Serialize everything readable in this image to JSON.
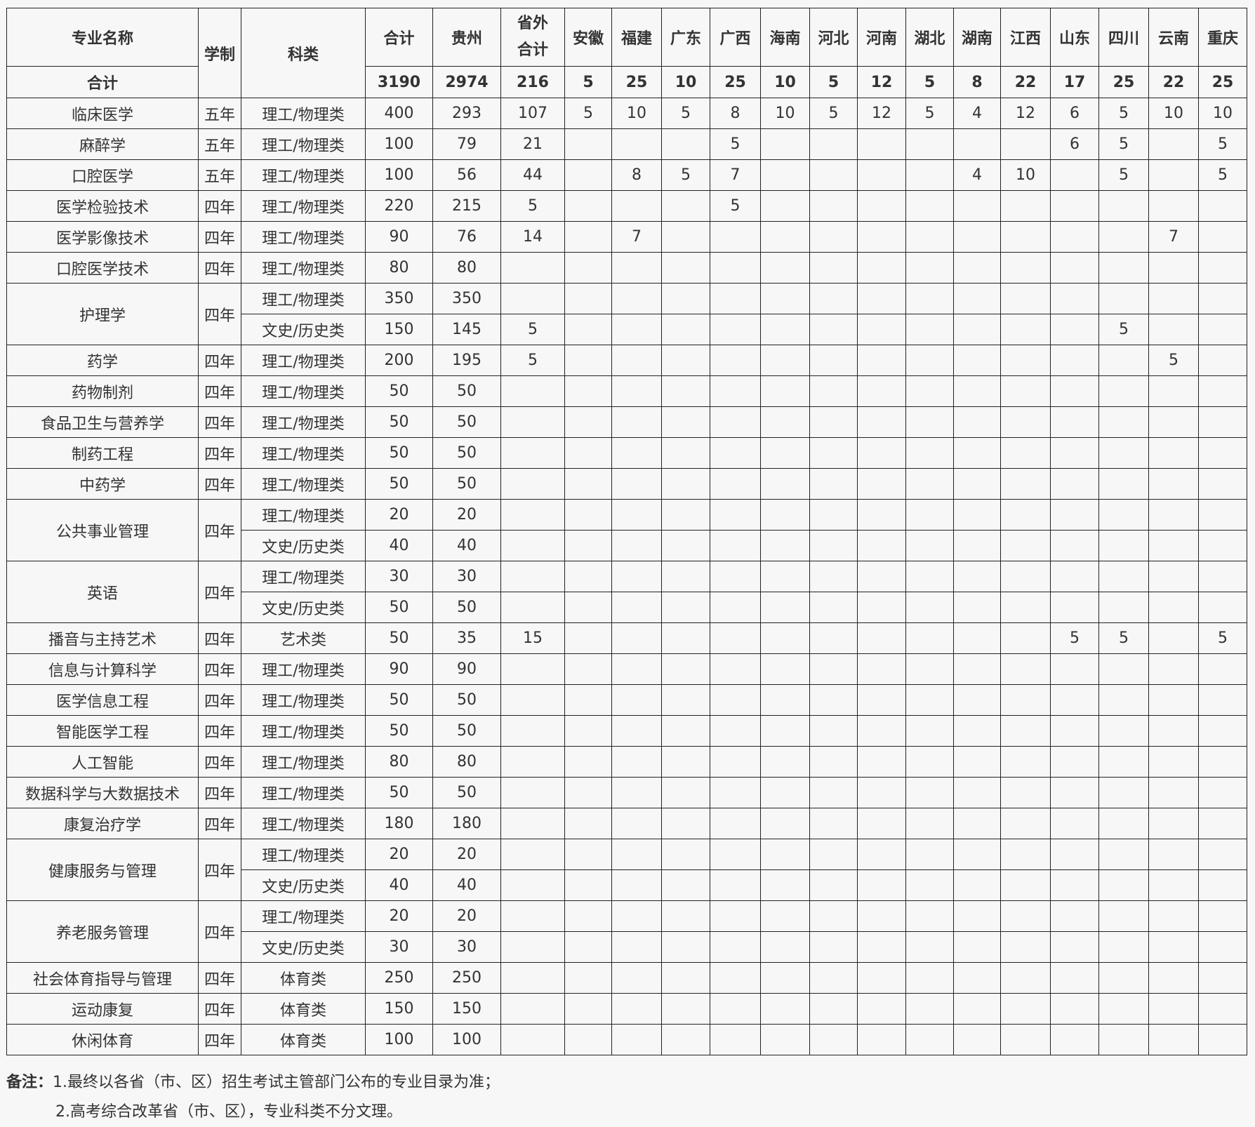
{
  "header": {
    "major": "专业名称",
    "years": "学制",
    "category": "科类",
    "total": "合计",
    "guizhou": "贵州",
    "outside": "省外合计",
    "provinces": [
      "安徽",
      "福建",
      "广东",
      "广西",
      "海南",
      "河北",
      "河南",
      "湖北",
      "湖南",
      "江西",
      "山东",
      "四川",
      "云南",
      "重庆"
    ]
  },
  "totals": {
    "label": "合计",
    "total": "3190",
    "guizhou": "2974",
    "outside": "216",
    "provinces": [
      "5",
      "25",
      "10",
      "25",
      "10",
      "5",
      "12",
      "5",
      "8",
      "22",
      "17",
      "25",
      "22",
      "25"
    ]
  },
  "majors": [
    {
      "name": "临床医学",
      "years": "五年",
      "rows": [
        {
          "category": "理工/物理类",
          "total": "400",
          "guizhou": "293",
          "outside": "107",
          "provinces": [
            "5",
            "10",
            "5",
            "8",
            "10",
            "5",
            "12",
            "5",
            "4",
            "12",
            "6",
            "5",
            "10",
            "10"
          ]
        }
      ]
    },
    {
      "name": "麻醉学",
      "years": "五年",
      "rows": [
        {
          "category": "理工/物理类",
          "total": "100",
          "guizhou": "79",
          "outside": "21",
          "provinces": [
            "",
            "",
            "",
            "5",
            "",
            "",
            "",
            "",
            "",
            "",
            "6",
            "5",
            "",
            "5"
          ]
        }
      ]
    },
    {
      "name": "口腔医学",
      "years": "五年",
      "rows": [
        {
          "category": "理工/物理类",
          "total": "100",
          "guizhou": "56",
          "outside": "44",
          "provinces": [
            "",
            "8",
            "5",
            "7",
            "",
            "",
            "",
            "",
            "4",
            "10",
            "",
            "5",
            "",
            "5"
          ]
        }
      ]
    },
    {
      "name": "医学检验技术",
      "years": "四年",
      "rows": [
        {
          "category": "理工/物理类",
          "total": "220",
          "guizhou": "215",
          "outside": "5",
          "provinces": [
            "",
            "",
            "",
            "5",
            "",
            "",
            "",
            "",
            "",
            "",
            "",
            "",
            "",
            ""
          ]
        }
      ]
    },
    {
      "name": "医学影像技术",
      "years": "四年",
      "rows": [
        {
          "category": "理工/物理类",
          "total": "90",
          "guizhou": "76",
          "outside": "14",
          "provinces": [
            "",
            "7",
            "",
            "",
            "",
            "",
            "",
            "",
            "",
            "",
            "",
            "",
            "7",
            ""
          ]
        }
      ]
    },
    {
      "name": "口腔医学技术",
      "years": "四年",
      "rows": [
        {
          "category": "理工/物理类",
          "total": "80",
          "guizhou": "80",
          "outside": "",
          "provinces": []
        }
      ]
    },
    {
      "name": "护理学",
      "years": "四年",
      "rows": [
        {
          "category": "理工/物理类",
          "total": "350",
          "guizhou": "350",
          "outside": "",
          "provinces": []
        },
        {
          "category": "文史/历史类",
          "total": "150",
          "guizhou": "145",
          "outside": "5",
          "provinces": [
            "",
            "",
            "",
            "",
            "",
            "",
            "",
            "",
            "",
            "",
            "",
            "5",
            "",
            ""
          ]
        }
      ]
    },
    {
      "name": "药学",
      "years": "四年",
      "rows": [
        {
          "category": "理工/物理类",
          "total": "200",
          "guizhou": "195",
          "outside": "5",
          "provinces": [
            "",
            "",
            "",
            "",
            "",
            "",
            "",
            "",
            "",
            "",
            "",
            "",
            "5",
            ""
          ]
        }
      ]
    },
    {
      "name": "药物制剂",
      "years": "四年",
      "rows": [
        {
          "category": "理工/物理类",
          "total": "50",
          "guizhou": "50",
          "outside": "",
          "provinces": []
        }
      ]
    },
    {
      "name": "食品卫生与营养学",
      "years": "四年",
      "rows": [
        {
          "category": "理工/物理类",
          "total": "50",
          "guizhou": "50",
          "outside": "",
          "provinces": []
        }
      ]
    },
    {
      "name": "制药工程",
      "years": "四年",
      "rows": [
        {
          "category": "理工/物理类",
          "total": "50",
          "guizhou": "50",
          "outside": "",
          "provinces": []
        }
      ]
    },
    {
      "name": "中药学",
      "years": "四年",
      "rows": [
        {
          "category": "理工/物理类",
          "total": "50",
          "guizhou": "50",
          "outside": "",
          "provinces": []
        }
      ]
    },
    {
      "name": "公共事业管理",
      "years": "四年",
      "rows": [
        {
          "category": "理工/物理类",
          "total": "20",
          "guizhou": "20",
          "outside": "",
          "provinces": []
        },
        {
          "category": "文史/历史类",
          "total": "40",
          "guizhou": "40",
          "outside": "",
          "provinces": []
        }
      ]
    },
    {
      "name": "英语",
      "years": "四年",
      "rows": [
        {
          "category": "理工/物理类",
          "total": "30",
          "guizhou": "30",
          "outside": "",
          "provinces": []
        },
        {
          "category": "文史/历史类",
          "total": "50",
          "guizhou": "50",
          "outside": "",
          "provinces": []
        }
      ]
    },
    {
      "name": "播音与主持艺术",
      "years": "四年",
      "rows": [
        {
          "category": "艺术类",
          "total": "50",
          "guizhou": "35",
          "outside": "15",
          "provinces": [
            "",
            "",
            "",
            "",
            "",
            "",
            "",
            "",
            "",
            "",
            "5",
            "5",
            "",
            "5"
          ]
        }
      ]
    },
    {
      "name": "信息与计算科学",
      "years": "四年",
      "rows": [
        {
          "category": "理工/物理类",
          "total": "90",
          "guizhou": "90",
          "outside": "",
          "provinces": []
        }
      ]
    },
    {
      "name": "医学信息工程",
      "years": "四年",
      "rows": [
        {
          "category": "理工/物理类",
          "total": "50",
          "guizhou": "50",
          "outside": "",
          "provinces": []
        }
      ]
    },
    {
      "name": "智能医学工程",
      "years": "四年",
      "rows": [
        {
          "category": "理工/物理类",
          "total": "50",
          "guizhou": "50",
          "outside": "",
          "provinces": []
        }
      ]
    },
    {
      "name": "人工智能",
      "years": "四年",
      "rows": [
        {
          "category": "理工/物理类",
          "total": "80",
          "guizhou": "80",
          "outside": "",
          "provinces": []
        }
      ]
    },
    {
      "name": "数据科学与大数据技术",
      "years": "四年",
      "rows": [
        {
          "category": "理工/物理类",
          "total": "50",
          "guizhou": "50",
          "outside": "",
          "provinces": []
        }
      ]
    },
    {
      "name": "康复治疗学",
      "years": "四年",
      "rows": [
        {
          "category": "理工/物理类",
          "total": "180",
          "guizhou": "180",
          "outside": "",
          "provinces": []
        }
      ]
    },
    {
      "name": "健康服务与管理",
      "years": "四年",
      "rows": [
        {
          "category": "理工/物理类",
          "total": "20",
          "guizhou": "20",
          "outside": "",
          "provinces": []
        },
        {
          "category": "文史/历史类",
          "total": "40",
          "guizhou": "40",
          "outside": "",
          "provinces": []
        }
      ]
    },
    {
      "name": "养老服务管理",
      "years": "四年",
      "rows": [
        {
          "category": "理工/物理类",
          "total": "20",
          "guizhou": "20",
          "outside": "",
          "provinces": []
        },
        {
          "category": "文史/历史类",
          "total": "30",
          "guizhou": "30",
          "outside": "",
          "provinces": []
        }
      ]
    },
    {
      "name": "社会体育指导与管理",
      "years": "四年",
      "rows": [
        {
          "category": "体育类",
          "total": "250",
          "guizhou": "250",
          "outside": "",
          "provinces": []
        }
      ]
    },
    {
      "name": "运动康复",
      "years": "四年",
      "rows": [
        {
          "category": "体育类",
          "total": "150",
          "guizhou": "150",
          "outside": "",
          "provinces": []
        }
      ]
    },
    {
      "name": "休闲体育",
      "years": "四年",
      "rows": [
        {
          "category": "体育类",
          "total": "100",
          "guizhou": "100",
          "outside": "",
          "provinces": []
        }
      ]
    }
  ],
  "notes": {
    "label": "备注：",
    "line1": "1.最终以各省（市、区）招生考试主管部门公布的专业目录为准；",
    "line2": "2.高考综合改革省（市、区），专业科类不分文理。"
  }
}
